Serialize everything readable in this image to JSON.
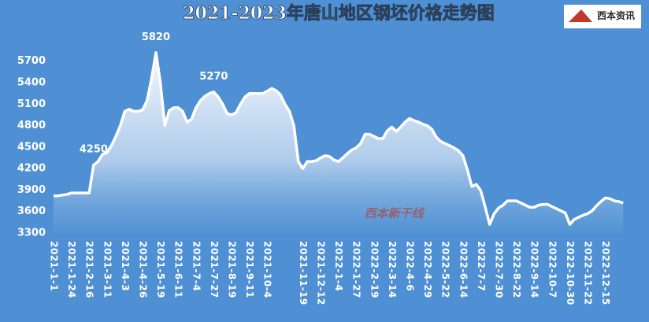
{
  "chart_data": {
    "type": "area",
    "title": "2021-2023年唐山地区钢坯价格走势图",
    "logo": "西本资讯",
    "watermark": "西本新干线",
    "categories": [
      "2021-1-1",
      null,
      null,
      null,
      "2021-1-24",
      null,
      null,
      null,
      "2021-2-16",
      null,
      null,
      null,
      "2021-3-11",
      null,
      null,
      null,
      "2021-4-3",
      null,
      null,
      null,
      "2021-4-26",
      null,
      null,
      null,
      "2021-5-19",
      null,
      null,
      null,
      "2021-6-11",
      null,
      null,
      null,
      "2021-7-4",
      null,
      null,
      null,
      "2021-7-27",
      null,
      null,
      null,
      "2021-8-19",
      null,
      null,
      null,
      "2021-9-11",
      null,
      null,
      null,
      "2021-10-4",
      null,
      null,
      null,
      null,
      null,
      null,
      null,
      "2021-11-19",
      null,
      null,
      null,
      "2021-12-12",
      null,
      null,
      null,
      "2022-1-4",
      null,
      null,
      null,
      "2022-1-27",
      null,
      null,
      null,
      "2022-2-19",
      null,
      null,
      null,
      "2022-3-14",
      null,
      null,
      null,
      "2022-4-6",
      null,
      null,
      null,
      "2022-4-29",
      null,
      null,
      null,
      "2022-5-22",
      null,
      null,
      null,
      "2022-6-14",
      null,
      null,
      null,
      "2022-7-7",
      null,
      null,
      null,
      "2022-7-30",
      null,
      null,
      null,
      "2022-8-22",
      null,
      null,
      null,
      "2022-9-14",
      null,
      null,
      null,
      "2022-10-7",
      null,
      null,
      null,
      "2022-10-30",
      null,
      null,
      null,
      "2022-11-22",
      null,
      null,
      null,
      "2022-12-15",
      null,
      null,
      null,
      null
    ],
    "values": [
      3820,
      3820,
      3830,
      3840,
      3860,
      3860,
      3860,
      3860,
      3860,
      4250,
      4300,
      4400,
      4420,
      4520,
      4650,
      4800,
      5000,
      5030,
      5000,
      5000,
      5020,
      5150,
      5450,
      5820,
      5400,
      4800,
      5010,
      5050,
      5050,
      5000,
      4850,
      4890,
      5050,
      5150,
      5210,
      5250,
      5270,
      5200,
      5100,
      4970,
      4950,
      4980,
      5100,
      5200,
      5250,
      5250,
      5250,
      5250,
      5280,
      5320,
      5290,
      5230,
      5100,
      5000,
      4800,
      4300,
      4200,
      4300,
      4300,
      4310,
      4350,
      4380,
      4370,
      4320,
      4300,
      4350,
      4410,
      4460,
      4490,
      4550,
      4680,
      4680,
      4650,
      4620,
      4620,
      4730,
      4780,
      4720,
      4780,
      4850,
      4900,
      4870,
      4850,
      4820,
      4800,
      4750,
      4640,
      4580,
      4550,
      4520,
      4490,
      4450,
      4380,
      4180,
      3950,
      3980,
      3890,
      3660,
      3420,
      3570,
      3650,
      3690,
      3750,
      3750,
      3750,
      3720,
      3690,
      3660,
      3660,
      3690,
      3700,
      3700,
      3670,
      3640,
      3610,
      3580,
      3420,
      3490,
      3520,
      3550,
      3570,
      3610,
      3680,
      3740,
      3790,
      3780,
      3750,
      3740,
      3720
    ],
    "annotations": [
      4250,
      5820,
      5270
    ],
    "color": "#ffffff",
    "ylim": [
      3300,
      5950
    ],
    "yticks": [
      3300,
      3600,
      3900,
      4200,
      4500,
      4800,
      5100,
      5400,
      5700
    ]
  }
}
